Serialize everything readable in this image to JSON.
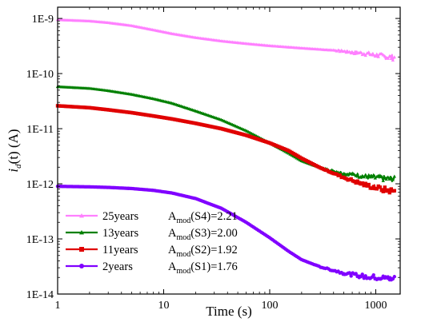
{
  "chart_data": {
    "type": "line",
    "xlabel": "Time (s)",
    "ylabel_main": "i",
    "ylabel_sub": "d",
    "ylabel_tail": "(t) (A)",
    "x_scale": "log",
    "y_scale": "log",
    "xlim": [
      1,
      1700
    ],
    "ylim": [
      1e-14,
      1.6e-09
    ],
    "x_ticks": [
      {
        "value": 1,
        "label": "1"
      },
      {
        "value": 10,
        "label": "10"
      },
      {
        "value": 100,
        "label": "100"
      },
      {
        "value": 1000,
        "label": "1000"
      }
    ],
    "y_ticks": [
      {
        "value": 1e-14,
        "label": "1E-14"
      },
      {
        "value": 1e-13,
        "label": "1E-13"
      },
      {
        "value": 1e-12,
        "label": "1E-12"
      },
      {
        "value": 1e-11,
        "label": "1E-11"
      },
      {
        "value": 1e-10,
        "label": "1E-10"
      },
      {
        "value": 1e-09,
        "label": "1E-9"
      }
    ],
    "grid": false,
    "legend_position": "bottom-left",
    "series": [
      {
        "name": "25years",
        "color": "#ff80ff",
        "marker": "triangle",
        "annotation_main": "A",
        "annotation_sub": "mod",
        "annotation_tail": "(S4)=2.21",
        "points": [
          [
            1,
            9.5e-10
          ],
          [
            2,
            9e-10
          ],
          [
            3,
            8.4e-10
          ],
          [
            5,
            7.4e-10
          ],
          [
            8,
            6.2e-10
          ],
          [
            12,
            5.3e-10
          ],
          [
            20,
            4.5e-10
          ],
          [
            35,
            3.9e-10
          ],
          [
            60,
            3.5e-10
          ],
          [
            100,
            3.2e-10
          ],
          [
            200,
            2.9e-10
          ],
          [
            400,
            2.65e-10
          ],
          [
            800,
            2.3e-10
          ],
          [
            1200,
            2.05e-10
          ],
          [
            1500,
            1.95e-10
          ]
        ],
        "noise_from": 300
      },
      {
        "name": "13years",
        "color": "#008000",
        "marker": "triangle",
        "annotation_main": "A",
        "annotation_sub": "mod",
        "annotation_tail": "(S3)=2.00",
        "points": [
          [
            1,
            5.8e-11
          ],
          [
            2,
            5.4e-11
          ],
          [
            3,
            4.9e-11
          ],
          [
            5,
            4.2e-11
          ],
          [
            8,
            3.5e-11
          ],
          [
            12,
            2.9e-11
          ],
          [
            20,
            2.1e-11
          ],
          [
            35,
            1.45e-11
          ],
          [
            60,
            9.2e-12
          ],
          [
            100,
            5.5e-12
          ],
          [
            150,
            3.6e-12
          ],
          [
            200,
            2.6e-12
          ],
          [
            300,
            1.95e-12
          ],
          [
            500,
            1.55e-12
          ],
          [
            800,
            1.35e-12
          ],
          [
            1200,
            1.25e-12
          ],
          [
            1500,
            1.22e-12
          ]
        ],
        "noise_from": 250
      },
      {
        "name": "11years",
        "color": "#e00000",
        "marker": "square",
        "annotation_main": "A",
        "annotation_sub": "mod",
        "annotation_tail": "(S2)=1.92",
        "points": [
          [
            1,
            2.6e-11
          ],
          [
            2,
            2.4e-11
          ],
          [
            3,
            2.2e-11
          ],
          [
            5,
            1.95e-11
          ],
          [
            8,
            1.7e-11
          ],
          [
            12,
            1.5e-11
          ],
          [
            20,
            1.25e-11
          ],
          [
            35,
            1e-11
          ],
          [
            60,
            7.6e-12
          ],
          [
            100,
            5.5e-12
          ],
          [
            150,
            4e-12
          ],
          [
            200,
            2.9e-12
          ],
          [
            300,
            1.95e-12
          ],
          [
            500,
            1.3e-12
          ],
          [
            800,
            9.5e-13
          ],
          [
            1200,
            7.8e-13
          ],
          [
            1500,
            7.3e-13
          ]
        ],
        "noise_from": 300
      },
      {
        "name": "2years",
        "color": "#8000ff",
        "marker": "circle",
        "annotation_main": "A",
        "annotation_sub": "mod",
        "annotation_tail": "(S1)=1.76",
        "points": [
          [
            1,
            9e-13
          ],
          [
            2,
            8.8e-13
          ],
          [
            3,
            8.6e-13
          ],
          [
            5,
            8.2e-13
          ],
          [
            8,
            7.6e-13
          ],
          [
            12,
            6.8e-13
          ],
          [
            20,
            5.4e-13
          ],
          [
            35,
            3.6e-13
          ],
          [
            60,
            2e-13
          ],
          [
            100,
            1.05e-13
          ],
          [
            150,
            6e-14
          ],
          [
            200,
            4.2e-14
          ],
          [
            300,
            3.1e-14
          ],
          [
            500,
            2.4e-14
          ],
          [
            800,
            2.05e-14
          ],
          [
            1200,
            1.95e-14
          ],
          [
            1500,
            1.9e-14
          ]
        ],
        "noise_from": 250
      }
    ]
  }
}
